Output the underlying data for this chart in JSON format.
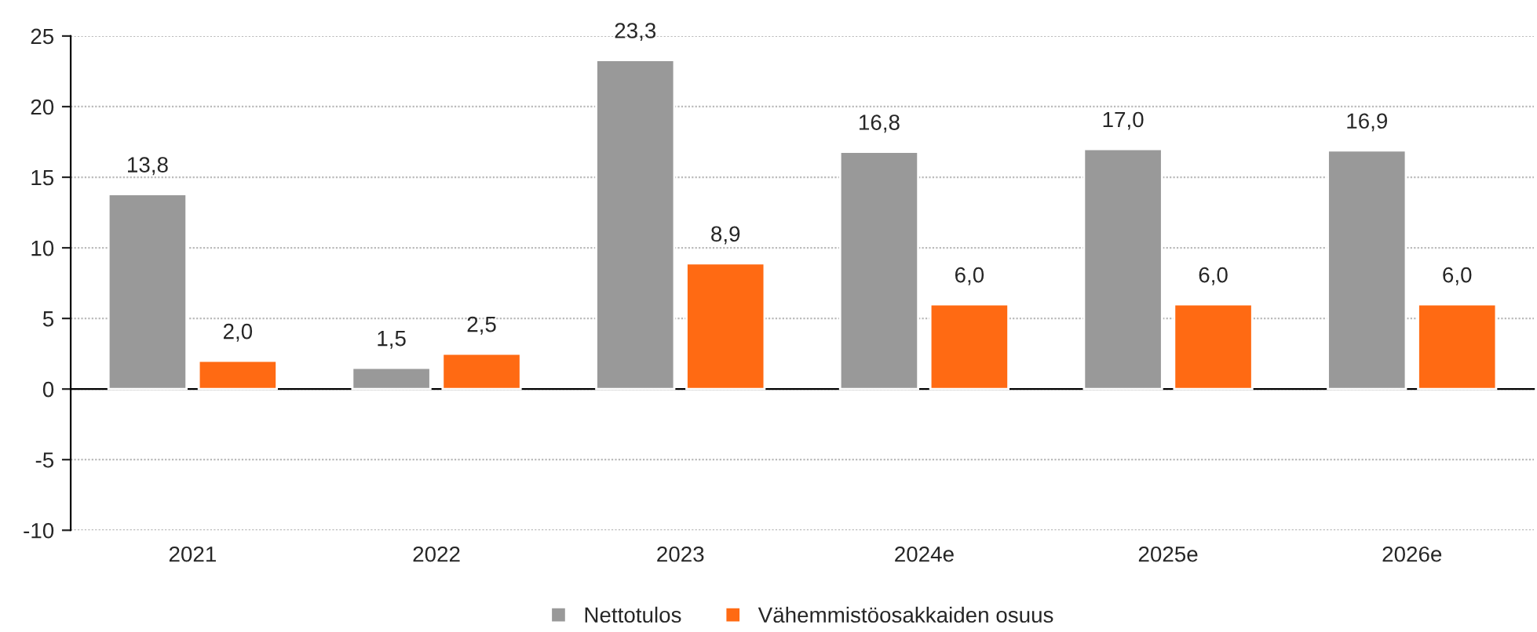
{
  "chart_data": {
    "type": "bar",
    "categories": [
      "2021",
      "2022",
      "2023",
      "2024e",
      "2025e",
      "2026e"
    ],
    "series": [
      {
        "name": "Nettotulos",
        "color": "#999999",
        "values": [
          13.8,
          1.5,
          23.3,
          16.8,
          17.0,
          16.9
        ],
        "value_labels": [
          "13,8",
          "1,5",
          "23,3",
          "16,8",
          "17,0",
          "16,9"
        ]
      },
      {
        "name": "Vähemmistöosakkaiden osuus",
        "color": "#ff6a13",
        "values": [
          2.0,
          2.5,
          8.9,
          6.0,
          6.0,
          6.0
        ],
        "value_labels": [
          "2,0",
          "2,5",
          "8,9",
          "6,0",
          "6,0",
          "6,0"
        ]
      }
    ],
    "ylim": [
      -10,
      25
    ],
    "yticks": [
      -10,
      -5,
      0,
      5,
      10,
      15,
      20,
      25
    ],
    "grid": "y",
    "legend": "bottom"
  }
}
